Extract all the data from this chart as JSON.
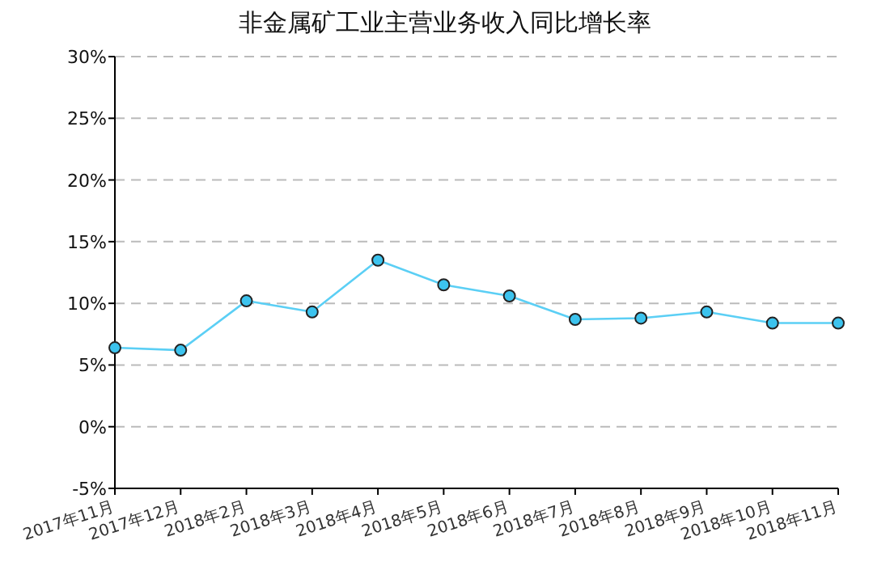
{
  "chart_data": {
    "type": "line",
    "title": "非金属矿工业主营业务收入同比增长率",
    "categories": [
      "2017年11月",
      "2017年12月",
      "2018年2月",
      "2018年3月",
      "2018年4月",
      "2018年5月",
      "2018年6月",
      "2018年7月",
      "2018年8月",
      "2018年9月",
      "2018年10月",
      "2018年11月"
    ],
    "series": [
      {
        "color": "#5bcff5",
        "values": [
          6.4,
          6.2,
          10.2,
          9.3,
          13.5,
          11.5,
          10.6,
          8.7,
          8.8,
          9.3,
          8.4,
          8.4
        ]
      }
    ],
    "ylim": [
      -5,
      30
    ],
    "yticks": [
      {
        "value": -5,
        "label": "-5%"
      },
      {
        "value": 0,
        "label": "0%"
      },
      {
        "value": 5,
        "label": "5%"
      },
      {
        "value": 10,
        "label": "10%"
      },
      {
        "value": 15,
        "label": "15%"
      },
      {
        "value": 20,
        "label": "20%"
      },
      {
        "value": 25,
        "label": "25%"
      },
      {
        "value": 30,
        "label": "30%"
      }
    ],
    "grid": "y",
    "marker": "circle",
    "line_style": "solid"
  }
}
